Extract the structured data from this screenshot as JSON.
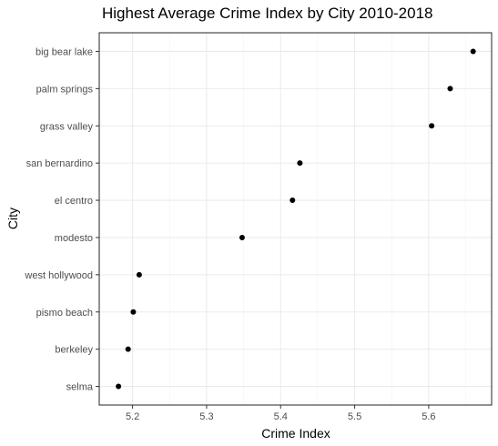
{
  "chart_data": {
    "type": "scatter",
    "title": "Highest Average Crime Index by City 2010-2018",
    "xlabel": "Crime Index",
    "ylabel": "City",
    "xlim": [
      5.155,
      5.685
    ],
    "x_ticks": [
      5.2,
      5.3,
      5.4,
      5.5,
      5.6
    ],
    "x_tick_labels": [
      "5.2",
      "5.3",
      "5.4",
      "5.5",
      "5.6"
    ],
    "categories": [
      "big bear lake",
      "palm springs",
      "grass valley",
      "san bernardino",
      "el centro",
      "modesto",
      "west hollywood",
      "pismo beach",
      "berkeley",
      "selma"
    ],
    "values": [
      5.66,
      5.629,
      5.604,
      5.426,
      5.416,
      5.348,
      5.209,
      5.201,
      5.194,
      5.181
    ],
    "grid": true,
    "theme": "bw"
  }
}
